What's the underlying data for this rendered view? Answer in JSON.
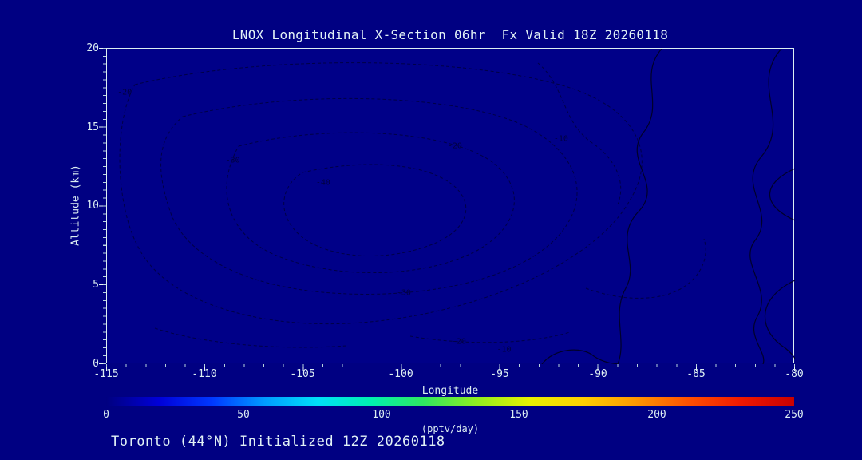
{
  "page": {
    "background_color": "#000082",
    "plot_background_color": "#000088",
    "text_color": "#dceef2",
    "frame_color": "#dceef2",
    "contour_line_color": "#000046"
  },
  "chart_data": {
    "type": "heatmap",
    "subtype": "filled-contour-cross-section",
    "title": "LNOX Longitudinal X-Section 06hr  Fx Valid 18Z 20260118",
    "footer": "Toronto (44°N) Initialized 12Z 20260118",
    "xlabel": "Longitude",
    "ylabel": "Altitude (km)",
    "xlim": [
      -115,
      -80
    ],
    "ylim": [
      0,
      20
    ],
    "x_ticks": [
      "-115",
      "-110",
      "-105",
      "-100",
      "-95",
      "-90",
      "-85",
      "-80"
    ],
    "y_ticks": [
      "0",
      "5",
      "10",
      "15",
      "20"
    ],
    "grid": false,
    "legend_position": "bottom-colorbar",
    "field_fill": "entire cross-section filled at minimum of scale (~0 pptv/day, dark blue)",
    "contour_levels_visible": [
      -40,
      -30,
      -20,
      -10,
      0
    ],
    "contour_labels": [
      {
        "value": "-20",
        "lon": -114.1,
        "alt_km": 17.2
      },
      {
        "value": "-30",
        "lon": -108.6,
        "alt_km": 12.9
      },
      {
        "value": "-40",
        "lon": -104.0,
        "alt_km": 11.5
      },
      {
        "value": "-20",
        "lon": -97.3,
        "alt_km": 13.8
      },
      {
        "value": "-10",
        "lon": -91.9,
        "alt_km": 14.3
      },
      {
        "value": "-30",
        "lon": -99.9,
        "alt_km": 4.5
      },
      {
        "value": "-20",
        "lon": -97.1,
        "alt_km": 1.4
      },
      {
        "value": "-10",
        "lon": -94.8,
        "alt_km": 0.9
      }
    ],
    "colorbar": {
      "min": 0,
      "max": 250,
      "ticks": [
        "0",
        "50",
        "100",
        "150",
        "200",
        "250"
      ],
      "units": "(pptv/day)",
      "colors": [
        "#000080",
        "#0000d8",
        "#0038ff",
        "#009cff",
        "#00e0f8",
        "#00f0b0",
        "#30e860",
        "#90ee20",
        "#e8f000",
        "#ffd000",
        "#ff9800",
        "#ff5000",
        "#f01800",
        "#c80000"
      ]
    }
  }
}
